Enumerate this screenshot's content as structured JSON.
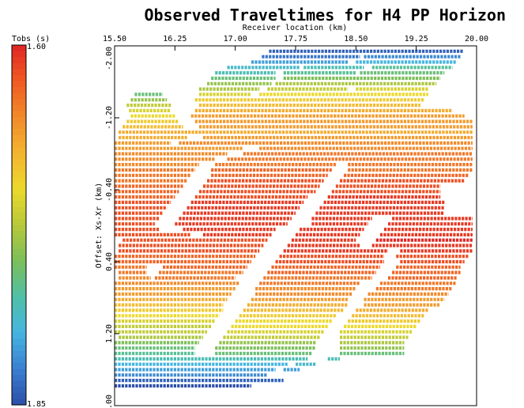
{
  "chart_data": {
    "type": "heatmap",
    "title": "Observed Traveltimes for H4 PP Horizon",
    "xlabel": "Receiver location (km)",
    "ylabel": "Offset: Xs-Xr (km)",
    "xticks": [
      "15.50",
      "16.25",
      "17.00",
      "17.75",
      "18.50",
      "19.25",
      "20.00"
    ],
    "yticks": [
      "-2.00",
      "-1.20",
      "-0.40",
      "0.40",
      "1.20",
      "2.00"
    ],
    "xlim": [
      15.5,
      20.0
    ],
    "ylim": [
      -2.0,
      2.0
    ],
    "colorbar": {
      "label": "Tobs (s)",
      "max_label": "1.60",
      "min_label": "1.85",
      "value_top": 1.6,
      "value_bottom": 1.85,
      "colors_top_to_bottom": [
        "#e02525",
        "#f05a22",
        "#f28a2a",
        "#f3b431",
        "#ecd92b",
        "#b8c83a",
        "#7cbf5a",
        "#4fc0a8",
        "#45b5e0",
        "#3a7fd0",
        "#2d4fa8"
      ]
    },
    "rows": [
      {
        "offset": -1.94,
        "segments": [
          [
            17.42,
            19.83,
            1.84
          ]
        ]
      },
      {
        "offset": -1.88,
        "segments": [
          [
            17.33,
            18.55,
            1.83
          ],
          [
            18.6,
            19.8,
            1.82
          ]
        ]
      },
      {
        "offset": -1.82,
        "segments": [
          [
            17.2,
            18.4,
            1.81
          ],
          [
            18.5,
            19.75,
            1.8
          ]
        ]
      },
      {
        "offset": -1.76,
        "segments": [
          [
            16.9,
            17.8,
            1.79
          ],
          [
            17.85,
            18.6,
            1.78
          ],
          [
            18.7,
            19.7,
            1.77
          ]
        ]
      },
      {
        "offset": -1.7,
        "segments": [
          [
            16.75,
            17.5,
            1.78
          ],
          [
            17.6,
            18.5,
            1.77
          ],
          [
            18.55,
            19.6,
            1.76
          ]
        ]
      },
      {
        "offset": -1.64,
        "segments": [
          [
            16.7,
            17.5,
            1.76
          ],
          [
            17.6,
            19.55,
            1.75
          ]
        ]
      },
      {
        "offset": -1.58,
        "segments": [
          [
            16.65,
            17.45,
            1.74
          ],
          [
            17.5,
            19.5,
            1.73
          ]
        ]
      },
      {
        "offset": -1.52,
        "segments": [
          [
            16.55,
            17.3,
            1.73
          ],
          [
            17.4,
            18.4,
            1.72
          ],
          [
            18.5,
            19.4,
            1.71
          ]
        ]
      },
      {
        "offset": -1.46,
        "segments": [
          [
            15.75,
            16.1,
            1.76
          ],
          [
            16.55,
            17.2,
            1.71
          ],
          [
            17.3,
            19.4,
            1.7
          ]
        ]
      },
      {
        "offset": -1.4,
        "segments": [
          [
            15.7,
            16.15,
            1.74
          ],
          [
            16.5,
            19.35,
            1.69
          ]
        ]
      },
      {
        "offset": -1.34,
        "segments": [
          [
            15.65,
            16.2,
            1.72
          ],
          [
            16.55,
            19.3,
            1.68
          ]
        ]
      },
      {
        "offset": -1.28,
        "segments": [
          [
            15.68,
            16.2,
            1.71
          ],
          [
            16.5,
            19.7,
            1.67
          ]
        ]
      },
      {
        "offset": -1.22,
        "segments": [
          [
            15.7,
            16.25,
            1.7
          ],
          [
            16.45,
            19.85,
            1.66
          ]
        ]
      },
      {
        "offset": -1.16,
        "segments": [
          [
            15.65,
            16.3,
            1.69
          ],
          [
            16.5,
            19.95,
            1.66
          ]
        ]
      },
      {
        "offset": -1.1,
        "segments": [
          [
            15.6,
            16.35,
            1.68
          ],
          [
            16.55,
            19.95,
            1.66
          ]
        ]
      },
      {
        "offset": -1.04,
        "segments": [
          [
            15.55,
            19.95,
            1.67
          ]
        ]
      },
      {
        "offset": -0.98,
        "segments": [
          [
            15.55,
            16.4,
            1.67
          ],
          [
            16.6,
            19.95,
            1.66
          ]
        ]
      },
      {
        "offset": -0.92,
        "segments": [
          [
            15.5,
            16.2,
            1.66
          ],
          [
            16.3,
            19.95,
            1.65
          ]
        ]
      },
      {
        "offset": -0.86,
        "segments": [
          [
            15.5,
            17.1,
            1.66
          ],
          [
            17.3,
            19.95,
            1.65
          ]
        ]
      },
      {
        "offset": -0.8,
        "segments": [
          [
            15.5,
            16.9,
            1.65
          ],
          [
            17.1,
            19.95,
            1.64
          ]
        ]
      },
      {
        "offset": -0.74,
        "segments": [
          [
            15.5,
            16.75,
            1.65
          ],
          [
            16.9,
            19.95,
            1.64
          ]
        ]
      },
      {
        "offset": -0.68,
        "segments": [
          [
            15.5,
            16.55,
            1.65
          ],
          [
            16.75,
            18.25,
            1.64
          ],
          [
            18.4,
            19.95,
            1.64
          ]
        ]
      },
      {
        "offset": -0.62,
        "segments": [
          [
            15.5,
            16.5,
            1.64
          ],
          [
            16.7,
            18.2,
            1.63
          ],
          [
            18.4,
            19.95,
            1.64
          ]
        ]
      },
      {
        "offset": -0.56,
        "segments": [
          [
            15.5,
            16.45,
            1.64
          ],
          [
            16.7,
            18.15,
            1.63
          ],
          [
            18.35,
            19.9,
            1.63
          ]
        ]
      },
      {
        "offset": -0.5,
        "segments": [
          [
            15.5,
            16.4,
            1.64
          ],
          [
            16.65,
            18.1,
            1.62
          ],
          [
            18.3,
            19.85,
            1.62
          ]
        ]
      },
      {
        "offset": -0.44,
        "segments": [
          [
            15.5,
            16.35,
            1.63
          ],
          [
            16.6,
            18.05,
            1.62
          ],
          [
            18.25,
            19.55,
            1.62
          ]
        ]
      },
      {
        "offset": -0.38,
        "segments": [
          [
            15.5,
            16.3,
            1.63
          ],
          [
            16.55,
            18.0,
            1.62
          ],
          [
            18.2,
            19.55,
            1.62
          ]
        ]
      },
      {
        "offset": -0.32,
        "segments": [
          [
            15.5,
            16.25,
            1.63
          ],
          [
            16.5,
            17.9,
            1.62
          ],
          [
            18.15,
            19.55,
            1.61
          ]
        ]
      },
      {
        "offset": -0.26,
        "segments": [
          [
            15.5,
            16.2,
            1.62
          ],
          [
            16.45,
            17.85,
            1.61
          ],
          [
            18.1,
            19.6,
            1.61
          ]
        ]
      },
      {
        "offset": -0.2,
        "segments": [
          [
            15.5,
            16.15,
            1.62
          ],
          [
            16.4,
            17.8,
            1.61
          ],
          [
            18.05,
            19.6,
            1.61
          ]
        ]
      },
      {
        "offset": -0.14,
        "segments": [
          [
            15.5,
            16.1,
            1.62
          ],
          [
            16.35,
            17.75,
            1.61
          ],
          [
            18.0,
            19.6,
            1.61
          ]
        ]
      },
      {
        "offset": -0.08,
        "segments": [
          [
            15.5,
            16.05,
            1.62
          ],
          [
            16.3,
            17.7,
            1.61
          ],
          [
            17.95,
            18.7,
            1.61
          ],
          [
            18.95,
            19.95,
            1.61
          ]
        ]
      },
      {
        "offset": -0.02,
        "segments": [
          [
            15.5,
            16.0,
            1.62
          ],
          [
            16.25,
            17.65,
            1.61
          ],
          [
            17.95,
            18.65,
            1.61
          ],
          [
            18.9,
            19.95,
            1.61
          ]
        ]
      },
      {
        "offset": 0.04,
        "segments": [
          [
            15.5,
            16.05,
            1.62
          ],
          [
            16.35,
            17.5,
            1.61
          ],
          [
            17.8,
            18.6,
            1.61
          ],
          [
            18.85,
            19.95,
            1.61
          ]
        ]
      },
      {
        "offset": 0.1,
        "segments": [
          [
            15.5,
            16.45,
            1.62
          ],
          [
            16.6,
            17.45,
            1.61
          ],
          [
            17.75,
            18.55,
            1.61
          ],
          [
            18.8,
            19.95,
            1.61
          ]
        ]
      },
      {
        "offset": 0.16,
        "segments": [
          [
            15.6,
            17.4,
            1.62
          ],
          [
            17.7,
            18.5,
            1.61
          ],
          [
            18.75,
            19.95,
            1.6
          ]
        ]
      },
      {
        "offset": 0.22,
        "segments": [
          [
            15.55,
            17.35,
            1.62
          ],
          [
            17.65,
            18.55,
            1.61
          ],
          [
            18.7,
            19.95,
            1.61
          ]
        ]
      },
      {
        "offset": 0.28,
        "segments": [
          [
            15.55,
            17.3,
            1.62
          ],
          [
            17.6,
            18.9,
            1.61
          ],
          [
            19.05,
            19.95,
            1.61
          ]
        ]
      },
      {
        "offset": 0.34,
        "segments": [
          [
            15.5,
            17.25,
            1.63
          ],
          [
            17.55,
            18.85,
            1.62
          ],
          [
            19.0,
            19.9,
            1.62
          ]
        ]
      },
      {
        "offset": 0.4,
        "segments": [
          [
            15.5,
            17.2,
            1.63
          ],
          [
            17.5,
            18.85,
            1.62
          ],
          [
            19.05,
            19.85,
            1.62
          ]
        ]
      },
      {
        "offset": 0.46,
        "segments": [
          [
            15.5,
            15.9,
            1.64
          ],
          [
            16.1,
            17.15,
            1.63
          ],
          [
            17.45,
            18.8,
            1.63
          ],
          [
            19.0,
            19.8,
            1.63
          ]
        ]
      },
      {
        "offset": 0.52,
        "segments": [
          [
            15.55,
            15.9,
            1.64
          ],
          [
            16.05,
            17.1,
            1.64
          ],
          [
            17.4,
            18.75,
            1.63
          ],
          [
            18.95,
            19.8,
            1.63
          ]
        ]
      },
      {
        "offset": 0.58,
        "segments": [
          [
            15.55,
            15.95,
            1.65
          ],
          [
            16.0,
            17.0,
            1.64
          ],
          [
            17.35,
            18.7,
            1.64
          ],
          [
            18.9,
            19.75,
            1.63
          ]
        ]
      },
      {
        "offset": 0.64,
        "segments": [
          [
            15.5,
            17.05,
            1.65
          ],
          [
            17.3,
            18.55,
            1.64
          ],
          [
            18.8,
            19.75,
            1.64
          ]
        ]
      },
      {
        "offset": 0.7,
        "segments": [
          [
            15.5,
            17.0,
            1.66
          ],
          [
            17.25,
            18.5,
            1.65
          ],
          [
            18.75,
            19.7,
            1.64
          ]
        ]
      },
      {
        "offset": 0.76,
        "segments": [
          [
            15.5,
            16.95,
            1.66
          ],
          [
            17.25,
            18.45,
            1.65
          ],
          [
            18.65,
            19.65,
            1.65
          ]
        ]
      },
      {
        "offset": 0.82,
        "segments": [
          [
            15.5,
            16.9,
            1.67
          ],
          [
            17.2,
            18.4,
            1.66
          ],
          [
            18.6,
            19.6,
            1.66
          ]
        ]
      },
      {
        "offset": 0.88,
        "segments": [
          [
            15.5,
            16.85,
            1.68
          ],
          [
            17.15,
            18.4,
            1.67
          ],
          [
            18.6,
            19.55,
            1.66
          ]
        ]
      },
      {
        "offset": 0.94,
        "segments": [
          [
            15.5,
            16.85,
            1.69
          ],
          [
            17.1,
            18.35,
            1.68
          ],
          [
            18.5,
            19.4,
            1.67
          ]
        ]
      },
      {
        "offset": 1.0,
        "segments": [
          [
            15.5,
            16.8,
            1.7
          ],
          [
            17.05,
            18.25,
            1.69
          ],
          [
            18.45,
            19.35,
            1.68
          ]
        ]
      },
      {
        "offset": 1.06,
        "segments": [
          [
            15.5,
            16.75,
            1.71
          ],
          [
            17.0,
            18.2,
            1.7
          ],
          [
            18.4,
            19.3,
            1.69
          ]
        ]
      },
      {
        "offset": 1.12,
        "segments": [
          [
            15.5,
            16.7,
            1.72
          ],
          [
            16.95,
            18.15,
            1.7
          ],
          [
            18.35,
            19.25,
            1.7
          ]
        ]
      },
      {
        "offset": 1.18,
        "segments": [
          [
            15.5,
            16.65,
            1.72
          ],
          [
            16.9,
            18.1,
            1.71
          ],
          [
            18.3,
            19.2,
            1.71
          ]
        ]
      },
      {
        "offset": 1.24,
        "segments": [
          [
            15.55,
            16.6,
            1.73
          ],
          [
            16.85,
            18.05,
            1.72
          ],
          [
            18.3,
            19.15,
            1.72
          ]
        ]
      },
      {
        "offset": 1.3,
        "segments": [
          [
            15.5,
            16.55,
            1.75
          ],
          [
            16.8,
            18.0,
            1.74
          ],
          [
            18.3,
            19.1,
            1.73
          ]
        ]
      },
      {
        "offset": 1.36,
        "segments": [
          [
            15.5,
            16.5,
            1.76
          ],
          [
            16.75,
            18.0,
            1.75
          ],
          [
            18.3,
            19.1,
            1.74
          ]
        ]
      },
      {
        "offset": 1.42,
        "segments": [
          [
            15.5,
            16.5,
            1.77
          ],
          [
            16.75,
            17.95,
            1.76
          ],
          [
            18.3,
            19.1,
            1.76
          ]
        ]
      },
      {
        "offset": 1.48,
        "segments": [
          [
            15.5,
            17.9,
            1.78
          ],
          [
            18.15,
            18.3,
            1.78
          ]
        ]
      },
      {
        "offset": 1.54,
        "segments": [
          [
            15.5,
            17.65,
            1.8
          ],
          [
            17.75,
            18.0,
            1.79
          ]
        ]
      },
      {
        "offset": 1.6,
        "segments": [
          [
            15.5,
            17.5,
            1.81
          ],
          [
            17.6,
            17.8,
            1.81
          ]
        ]
      },
      {
        "offset": 1.66,
        "segments": [
          [
            15.5,
            17.4,
            1.82
          ]
        ]
      },
      {
        "offset": 1.72,
        "segments": [
          [
            15.5,
            17.6,
            1.84
          ]
        ]
      },
      {
        "offset": 1.78,
        "segments": [
          [
            15.5,
            17.2,
            1.85
          ]
        ]
      }
    ]
  }
}
